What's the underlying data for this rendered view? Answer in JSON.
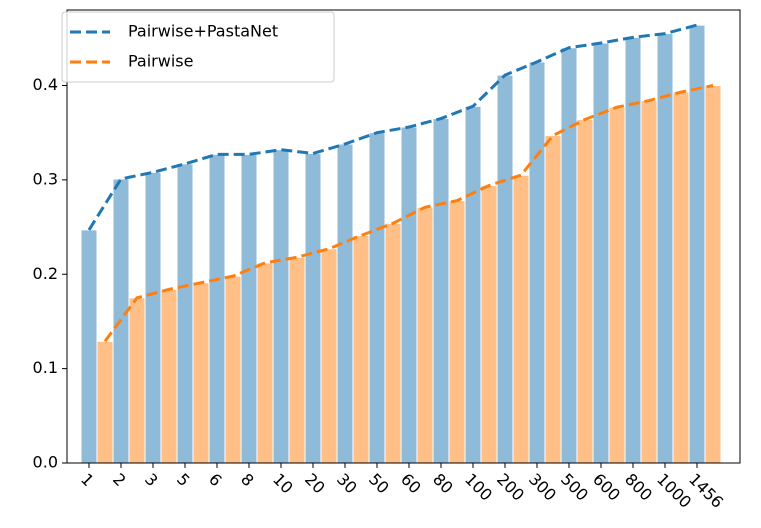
{
  "chart_data": {
    "type": "bar_line",
    "categories": [
      "1",
      "2",
      "3",
      "5",
      "6",
      "8",
      "10",
      "20",
      "30",
      "50",
      "60",
      "80",
      "100",
      "200",
      "300",
      "500",
      "600",
      "800",
      "1000",
      "1456"
    ],
    "series": [
      {
        "name": "Pairwise+PastaNet",
        "color": "#1f77b4",
        "values": [
          0.247,
          0.301,
          0.308,
          0.317,
          0.327,
          0.327,
          0.332,
          0.328,
          0.338,
          0.35,
          0.356,
          0.365,
          0.378,
          0.411,
          0.425,
          0.44,
          0.445,
          0.451,
          0.455,
          0.464
        ]
      },
      {
        "name": "Pairwise",
        "color": "#ff7f0e",
        "values": [
          0.129,
          0.175,
          0.184,
          0.191,
          0.198,
          0.212,
          0.218,
          0.227,
          0.241,
          0.254,
          0.271,
          0.278,
          0.294,
          0.305,
          0.347,
          0.364,
          0.377,
          0.384,
          0.393,
          0.4
        ]
      }
    ],
    "ylim": [
      0,
      0.48
    ],
    "yticks": [
      {
        "value": 0,
        "label": "0.0"
      },
      0.1,
      0.2,
      0.3,
      0.4
    ],
    "legend": "upper left"
  }
}
